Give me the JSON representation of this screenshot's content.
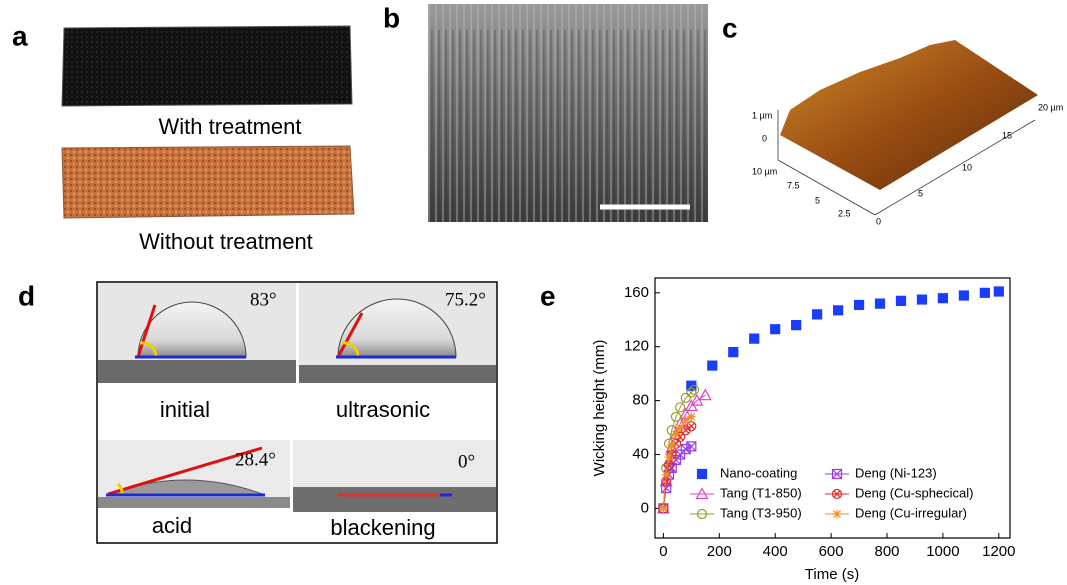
{
  "panel_labels": [
    "a",
    "b",
    "c",
    "d",
    "e"
  ],
  "panel_a": {
    "top_caption": "With treatment",
    "bottom_caption": "Without treatment"
  },
  "panel_c": {
    "z_labels": [
      "1 µm",
      "0"
    ],
    "x_labels": [
      "20 µm",
      "15",
      "10",
      "5",
      "0"
    ],
    "y_labels": [
      "10 µm",
      "7.5",
      "5",
      "2.5"
    ]
  },
  "panel_d": {
    "images": [
      {
        "angle": "83°",
        "caption": "initial"
      },
      {
        "angle": "75.2°",
        "caption": "ultrasonic"
      },
      {
        "angle": "28.4°",
        "caption": "acid"
      },
      {
        "angle": "0°",
        "caption": "blackening"
      }
    ]
  },
  "chart_data": {
    "type": "line",
    "x_label": "Time (s)",
    "y_label": "Wicking height (mm)",
    "xlim": [
      -30,
      1240
    ],
    "xticks": [
      0,
      200,
      400,
      600,
      800,
      1000,
      1200
    ],
    "ylim": [
      -22,
      171
    ],
    "yticks": [
      0,
      40,
      80,
      120,
      160
    ],
    "legend": "lower right",
    "series": [
      {
        "name": "Nano-coating",
        "color": "#1a3cff",
        "marker": "square",
        "line": false,
        "x": [
          100,
          175,
          250,
          325,
          400,
          475,
          550,
          625,
          700,
          775,
          850,
          925,
          1000,
          1075,
          1150,
          1200
        ],
        "values": [
          91,
          106,
          116,
          126,
          133,
          136,
          144,
          147,
          151,
          152,
          154,
          155,
          156,
          158,
          160,
          161
        ]
      },
      {
        "name": "Tang (T1-850)",
        "color": "#e040c8",
        "marker": "triangle",
        "line": true,
        "x": [
          0,
          10,
          20,
          30,
          45,
          60,
          80,
          100,
          120,
          150
        ],
        "values": [
          0,
          20,
          35,
          45,
          55,
          63,
          70,
          76,
          80,
          84
        ]
      },
      {
        "name": "Tang (T3-950)",
        "color": "#9a9a2a",
        "marker": "circle",
        "line": true,
        "x": [
          0,
          10,
          20,
          30,
          45,
          60,
          80,
          100,
          110
        ],
        "values": [
          0,
          30,
          48,
          58,
          68,
          75,
          82,
          86,
          88
        ]
      },
      {
        "name": "Deng (Ni-123)",
        "color": "#9a3ce0",
        "marker": "crossed-square",
        "line": true,
        "x": [
          0,
          10,
          20,
          30,
          45,
          60,
          80,
          100
        ],
        "values": [
          0,
          15,
          25,
          30,
          36,
          40,
          44,
          46
        ]
      },
      {
        "name": "Deng (Cu-sphecical)",
        "color": "#e02828",
        "marker": "crossed-circle",
        "line": true,
        "x": [
          0,
          10,
          20,
          30,
          45,
          60,
          80,
          100
        ],
        "values": [
          0,
          20,
          32,
          40,
          48,
          53,
          58,
          61
        ]
      },
      {
        "name": "Deng (Cu-irregular)",
        "color": "#f09020",
        "marker": "star",
        "line": true,
        "x": [
          0,
          10,
          20,
          30,
          45,
          60,
          80,
          100
        ],
        "values": [
          0,
          25,
          38,
          47,
          55,
          60,
          65,
          68
        ]
      }
    ]
  }
}
